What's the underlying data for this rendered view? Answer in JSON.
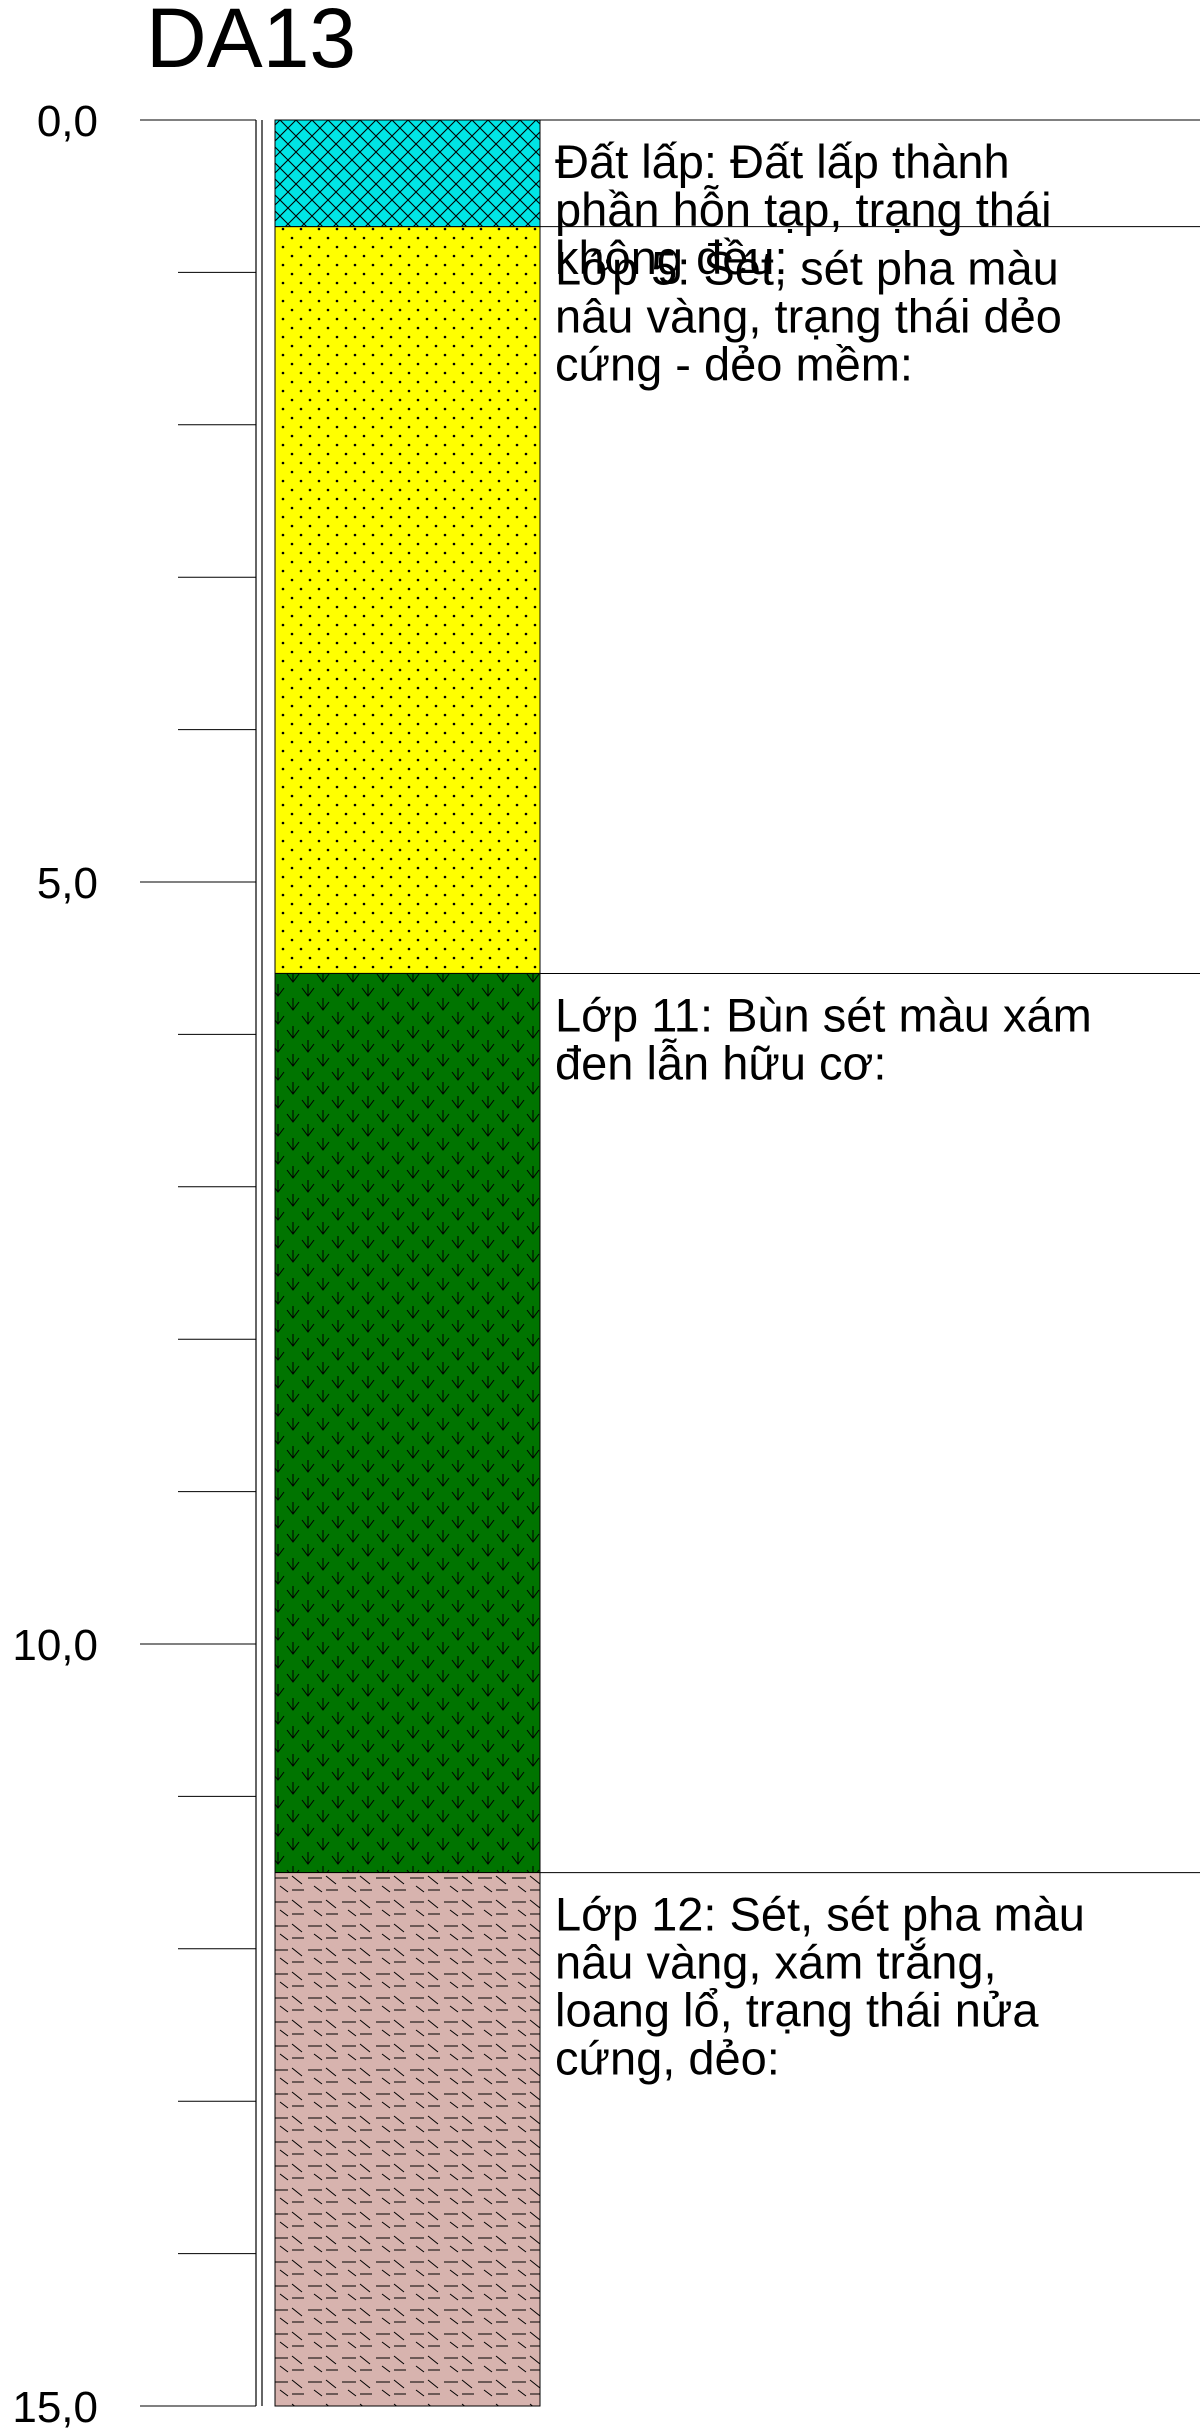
{
  "borehole": {
    "title": "DA13",
    "depth_min": 0,
    "depth_max": 15,
    "major_tick_step": 5,
    "minor_tick_step": 1,
    "depth_labels": [
      "0,0",
      "5,0",
      "10,0",
      "15,0"
    ]
  },
  "layers": [
    {
      "top": 0.0,
      "bottom": 0.7,
      "fill": "#00e5e5",
      "pattern": "crosshatch",
      "description": [
        "Đất lấp: Đất lấp thành",
        "phần hỗn tạp, trạng thái",
        "không đều:"
      ]
    },
    {
      "top": 0.7,
      "bottom": 5.6,
      "fill": "#ffff00",
      "pattern": "dots",
      "description": [
        "Lớp 5: Sét, sét pha màu",
        "nâu vàng, trạng thái dẻo",
        "cứng - dẻo mềm:"
      ]
    },
    {
      "top": 5.6,
      "bottom": 11.5,
      "fill": "#007400",
      "pattern": "marsh",
      "description": [
        "Lớp 11: Bùn sét màu xám",
        "đen lẫn hữu cơ:"
      ]
    },
    {
      "top": 11.5,
      "bottom": 15.0,
      "fill": "#d7b3ae",
      "pattern": "dashes",
      "description": [
        "Lớp 12: Sét, sét pha màu",
        "nâu vàng, xám trắng,",
        "loang lổ, trạng thái nửa",
        "cứng, dẻo:"
      ]
    }
  ]
}
